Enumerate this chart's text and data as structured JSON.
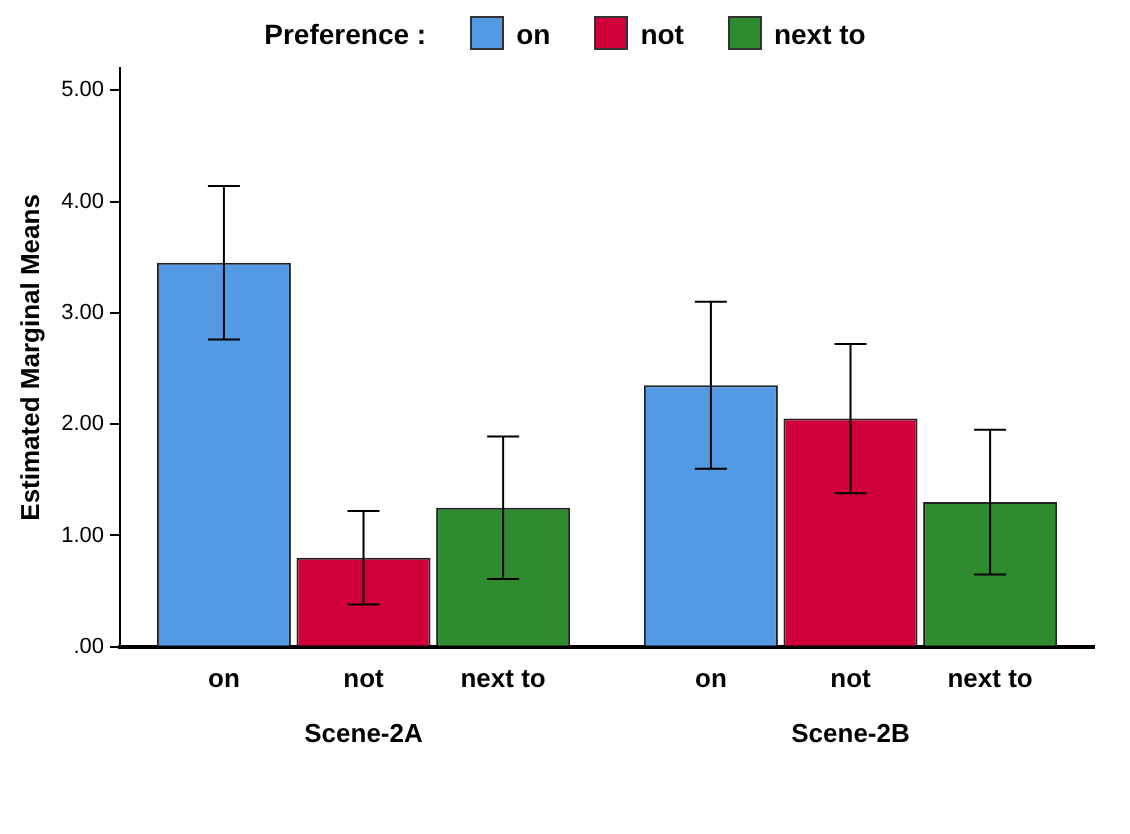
{
  "chart_data": {
    "type": "bar",
    "ylabel": "Estimated Marginal Means",
    "legend_title": "Preference :",
    "legend": "top",
    "grid": false,
    "categories": [
      "Scene-2A",
      "Scene-2B"
    ],
    "ylim": [
      0,
      5.2
    ],
    "yticks": [
      {
        "value": 0,
        "label": ".00"
      },
      {
        "value": 1,
        "label": "1.00"
      },
      {
        "value": 2,
        "label": "2.00"
      },
      {
        "value": 3,
        "label": "3.00"
      },
      {
        "value": 4,
        "label": "4.00"
      },
      {
        "value": 5,
        "label": "5.00"
      }
    ],
    "series": [
      {
        "name": "on",
        "color": "#5499e4",
        "values": [
          3.45,
          2.35
        ],
        "errors": [
          [
            2.76,
            4.14
          ],
          [
            1.6,
            3.1
          ]
        ]
      },
      {
        "name": "not",
        "color": "#d2003a",
        "values": [
          0.8,
          2.05
        ],
        "errors": [
          [
            0.38,
            1.22
          ],
          [
            1.38,
            2.72
          ]
        ]
      },
      {
        "name": "next to",
        "color": "#2e8b2e",
        "values": [
          1.25,
          1.3
        ],
        "errors": [
          [
            0.61,
            1.89
          ],
          [
            0.65,
            1.95
          ]
        ]
      }
    ]
  }
}
